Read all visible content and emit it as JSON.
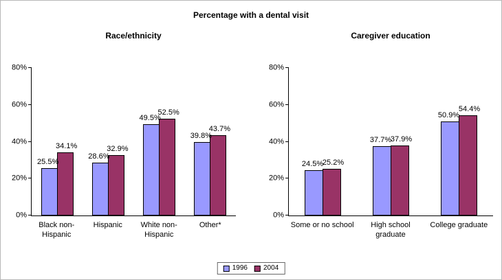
{
  "title": "Percentage with a dental visit",
  "legend": {
    "items": [
      {
        "label": "1996",
        "color": "#9999FF"
      },
      {
        "label": "2004",
        "color": "#993366"
      }
    ]
  },
  "colors": {
    "series_1996": "#9999FF",
    "series_2004": "#993366",
    "axis": "#000000"
  },
  "chart_data": [
    {
      "type": "bar",
      "title": "Race/ethnicity",
      "categories": [
        "Black non-\nHispanic",
        "Hispanic",
        "White non-\nHispanic",
        "Other*"
      ],
      "series": [
        {
          "name": "1996",
          "values": [
            25.5,
            28.6,
            49.5,
            39.8
          ]
        },
        {
          "name": "2004",
          "values": [
            34.1,
            32.9,
            52.5,
            43.7
          ]
        }
      ],
      "xlabel": "",
      "ylabel": "",
      "ylim": [
        0,
        80
      ],
      "y_ticks": [
        "0%",
        "20%",
        "40%",
        "60%",
        "80%"
      ],
      "grid": false,
      "value_labels": [
        "25.5%",
        "34.1%",
        "28.6%",
        "32.9%",
        "49.5%",
        "52.5%",
        "39.8%",
        "43.7%"
      ],
      "legend_position": "bottom"
    },
    {
      "type": "bar",
      "title": "Caregiver education",
      "categories": [
        "Some or no school",
        "High school\ngraduate",
        "College graduate"
      ],
      "series": [
        {
          "name": "1996",
          "values": [
            24.5,
            37.7,
            50.9
          ]
        },
        {
          "name": "2004",
          "values": [
            25.2,
            37.9,
            54.4
          ]
        }
      ],
      "xlabel": "",
      "ylabel": "",
      "ylim": [
        0,
        80
      ],
      "y_ticks": [
        "0%",
        "20%",
        "40%",
        "60%",
        "80%"
      ],
      "grid": false,
      "value_labels": [
        "24.5%",
        "25.2%",
        "37.7%",
        "37.9%",
        "50.9%",
        "54.4%"
      ],
      "legend_position": "bottom"
    }
  ]
}
